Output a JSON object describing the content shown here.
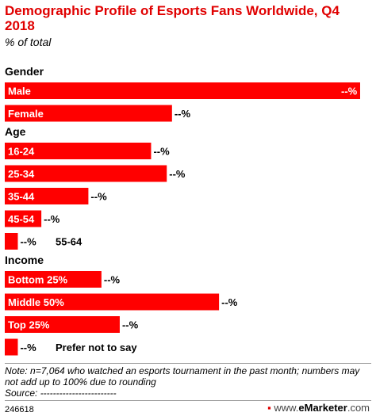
{
  "chart_data": {
    "type": "bar",
    "orientation": "horizontal",
    "title": "Demographic Profile of Esports Fans Worldwide, Q4 2018",
    "subtitle": "% of total",
    "value_label": "--%",
    "groups": [
      {
        "name": "Gender",
        "items": [
          {
            "label": "Male",
            "value": 68,
            "value_label": "--%",
            "label_outside": false
          },
          {
            "label": "Female",
            "value": 32,
            "value_label": "--%",
            "label_outside": false
          }
        ]
      },
      {
        "name": "Age",
        "items": [
          {
            "label": "16-24",
            "value": 28,
            "value_label": "--%",
            "label_outside": false
          },
          {
            "label": "25-34",
            "value": 31,
            "value_label": "--%",
            "label_outside": false
          },
          {
            "label": "35-44",
            "value": 16,
            "value_label": "--%",
            "label_outside": false
          },
          {
            "label": "45-54",
            "value": 7,
            "value_label": "--%",
            "label_outside": false
          },
          {
            "label": "55-64",
            "value": 2.5,
            "value_label": "--%",
            "label_outside": true
          }
        ]
      },
      {
        "name": "Income",
        "items": [
          {
            "label": "Bottom 25%",
            "value": 18.5,
            "value_label": "--%",
            "label_outside": false
          },
          {
            "label": "Middle 50%",
            "value": 41,
            "value_label": "--%",
            "label_outside": false
          },
          {
            "label": "Top 25%",
            "value": 22,
            "value_label": "--%",
            "label_outside": false
          },
          {
            "label": "Prefer not to say",
            "value": 2.5,
            "value_label": "--%",
            "label_outside": true
          }
        ]
      }
    ],
    "xlim": [
      0,
      68
    ],
    "bar_color": "#ff0000",
    "grid": false,
    "legend": "none"
  },
  "note": "Note: n=7,064 who watched an esports tournament in the past month; numbers may not add up to 100% due to rounding",
  "source": "Source: ------------------------",
  "chart_id": "246618",
  "brand": {
    "www": "www.",
    "name": "eMarketer",
    "tld": ".com",
    "accent": "#e00000"
  }
}
